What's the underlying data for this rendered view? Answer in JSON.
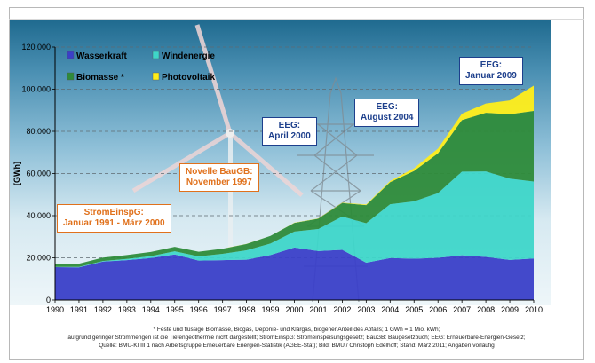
{
  "chart_data": {
    "type": "area",
    "stacked": true,
    "ylabel": "[GWh]",
    "ylim": [
      0,
      120000
    ],
    "yticks": [
      0,
      20000,
      40000,
      60000,
      80000,
      100000,
      120000
    ],
    "ytick_labels": [
      "0",
      "20.000",
      "40.000",
      "60.000",
      "80.000",
      "100.000",
      "120.000"
    ],
    "grid": "dashed horizontal",
    "legend": "top-left",
    "x": [
      1990,
      1991,
      1992,
      1993,
      1994,
      1995,
      1996,
      1997,
      1998,
      1999,
      2000,
      2001,
      2002,
      2003,
      2004,
      2005,
      2006,
      2007,
      2008,
      2009,
      2010
    ],
    "series": [
      {
        "name": "Wasserkraft",
        "color": "#3a3fc8",
        "values": [
          15600,
          15500,
          18200,
          18900,
          19900,
          21600,
          18700,
          18900,
          19100,
          21300,
          24900,
          23200,
          23800,
          17700,
          19900,
          19600,
          20000,
          21200,
          20400,
          19000,
          19700
        ]
      },
      {
        "name": "Windenergie",
        "color": "#3ed6c9",
        "values": [
          100,
          200,
          300,
          600,
          900,
          1500,
          2000,
          3000,
          4500,
          5500,
          7600,
          10500,
          15800,
          18700,
          25500,
          27200,
          30700,
          39700,
          40600,
          38600,
          36500
        ]
      },
      {
        "name": "Biomasse *",
        "color": "#2e8b3a",
        "values": [
          1400,
          1500,
          1600,
          1800,
          2000,
          2100,
          2200,
          2400,
          3000,
          3600,
          4100,
          4900,
          6400,
          8600,
          10500,
          14400,
          18900,
          24400,
          27800,
          30500,
          33500
        ]
      },
      {
        "name": "Photovoltaik",
        "color": "#ffee1a",
        "values": [
          1,
          2,
          4,
          6,
          8,
          10,
          15,
          20,
          30,
          40,
          60,
          80,
          160,
          300,
          560,
          1280,
          2220,
          3080,
          4420,
          6580,
          12000
        ]
      }
    ],
    "annotations": [
      {
        "id": "stromeinspg",
        "lines": [
          "StromEinspG:",
          "Januar 1991 - März 2000"
        ],
        "color": "#e0711c"
      },
      {
        "id": "baugb",
        "lines": [
          "Novelle BauGB:",
          "November 1997"
        ],
        "color": "#e0711c"
      },
      {
        "id": "eeg2000",
        "lines": [
          "EEG:",
          "April 2000"
        ],
        "color": "#1d3f8c"
      },
      {
        "id": "eeg2004",
        "lines": [
          "EEG:",
          "August  2004"
        ],
        "color": "#1d3f8c"
      },
      {
        "id": "eeg2009",
        "lines": [
          "EEG:",
          "Januar 2009"
        ],
        "color": "#1d3f8c"
      }
    ]
  },
  "footnotes": [
    "* Feste und flüssige Biomasse, Biogas, Deponie- und Klärgas, biogener Anteil des Abfalls; 1 GWh = 1 Mio. kWh;",
    "aufgrund geringer Strommengen ist die Tiefengeothermie nicht dargestellt; StromEinspG: Stromeinspeisungsgesetz; BauGB: Baugesetzbuch; EEG: Erneuerbare-Energien-Gesetz;",
    "Quelle: BMU-KI III 1 nach Arbeitsgruppe Erneuerbare Energien-Statistik (AGEE-Stat); Bild: BMU / Christoph Edelhoff; Stand: März 2011; Angaben vorläufig"
  ]
}
